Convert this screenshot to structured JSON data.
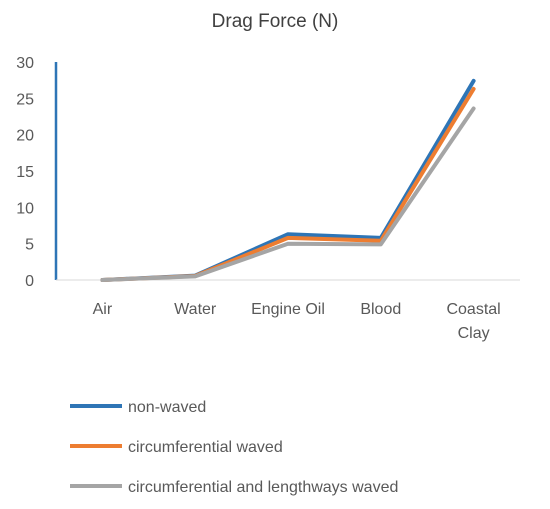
{
  "chart_data": {
    "type": "line",
    "title": "Drag Force (N)",
    "xlabel": "",
    "ylabel": "",
    "categories": [
      [
        "Air"
      ],
      [
        "Water"
      ],
      [
        "Engine Oil"
      ],
      [
        "Blood"
      ],
      [
        "Coastal",
        "Clay"
      ]
    ],
    "ylim": [
      0,
      30
    ],
    "yticks": [
      0,
      5,
      10,
      15,
      20,
      25,
      30
    ],
    "grid": false,
    "legend_position": "bottom",
    "series": [
      {
        "name": "non-waved",
        "color": "#2E75B6",
        "values": [
          0,
          0.6,
          6.3,
          5.8,
          27.4
        ]
      },
      {
        "name": "circumferential waved",
        "color": "#ED7D31",
        "values": [
          0,
          0.55,
          5.8,
          5.4,
          26.3
        ]
      },
      {
        "name": "circumferential and lengthways waved",
        "color": "#A5A5A5",
        "values": [
          0,
          0.5,
          5.0,
          4.9,
          23.6
        ]
      }
    ]
  }
}
